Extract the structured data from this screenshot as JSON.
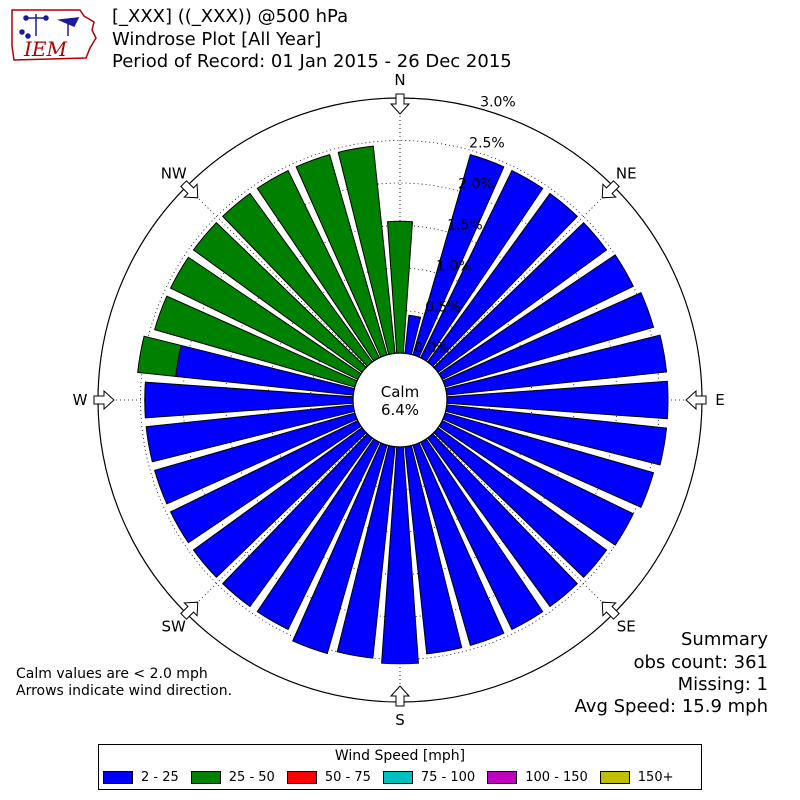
{
  "header": {
    "logo_text": "IEM",
    "title_line1": "[_XXX] ((_XXX)) @500 hPa",
    "title_line2": "Windrose Plot [All Year]",
    "title_line3": "Period of Record: 01 Jan 2015 - 26 Dec 2015"
  },
  "chart_data": {
    "type": "windrose",
    "direction_labels": [
      "N",
      "NE",
      "E",
      "SE",
      "S",
      "SW",
      "W",
      "NW"
    ],
    "radial_ticks": [
      0.0,
      0.5,
      1.0,
      1.5,
      2.0,
      2.5,
      3.0
    ],
    "radial_tick_labels": [
      "0.0%",
      "0.5%",
      "1.0%",
      "1.5%",
      "2.0%",
      "2.5%",
      "3.0%"
    ],
    "rmax": 3.0,
    "calm_label": "Calm",
    "calm_value": "6.4%",
    "bins_deg": [
      0,
      10,
      20,
      30,
      40,
      50,
      60,
      70,
      80,
      90,
      100,
      110,
      120,
      130,
      140,
      150,
      160,
      170,
      180,
      190,
      200,
      210,
      220,
      230,
      240,
      250,
      260,
      270,
      280,
      290,
      300,
      310,
      320,
      330,
      340,
      350
    ],
    "series": [
      {
        "name": "2 - 25",
        "color": "#0000ff",
        "values": [
          0,
          0.45,
          2.45,
          2.45,
          2.45,
          2.45,
          2.5,
          2.55,
          2.6,
          2.6,
          2.6,
          2.55,
          2.5,
          2.45,
          2.45,
          2.45,
          2.45,
          2.45,
          2.55,
          2.5,
          2.55,
          2.45,
          2.45,
          2.45,
          2.45,
          2.45,
          2.45,
          2.45,
          2.1,
          0,
          0,
          0,
          0,
          0,
          0,
          0
        ]
      },
      {
        "name": "25 - 50",
        "color": "#008000",
        "values": [
          1.55,
          0,
          0,
          0,
          0,
          0,
          0,
          0,
          0,
          0,
          0,
          0,
          0,
          0,
          0,
          0,
          0,
          0,
          0,
          0,
          0,
          0,
          0,
          0,
          0,
          0,
          0,
          0,
          0.45,
          2.45,
          2.45,
          2.45,
          2.45,
          2.45,
          2.45,
          2.45
        ]
      },
      {
        "name": "50 - 75",
        "color": "#ff0000",
        "values": []
      },
      {
        "name": "75 - 100",
        "color": "#00bfbf",
        "values": []
      },
      {
        "name": "100 - 150",
        "color": "#bf00bf",
        "values": []
      },
      {
        "name": "150+",
        "color": "#bfbf00",
        "values": []
      }
    ]
  },
  "summary": {
    "heading": "Summary",
    "obs_count": "obs count: 361",
    "missing": "Missing: 1",
    "avg_speed": "Avg Speed: 15.9 mph"
  },
  "notes": {
    "calm": "Calm values are < 2.0 mph",
    "arrows": "Arrows indicate wind direction."
  },
  "legend": {
    "title": "Wind Speed [mph]",
    "items": [
      {
        "label": "2 - 25",
        "color": "#0000ff"
      },
      {
        "label": "25 - 50",
        "color": "#008000"
      },
      {
        "label": "50 - 75",
        "color": "#ff0000"
      },
      {
        "label": "75 - 100",
        "color": "#00bfbf"
      },
      {
        "label": "100 - 150",
        "color": "#bf00bf"
      },
      {
        "label": "150+",
        "color": "#bfbf00"
      }
    ]
  }
}
